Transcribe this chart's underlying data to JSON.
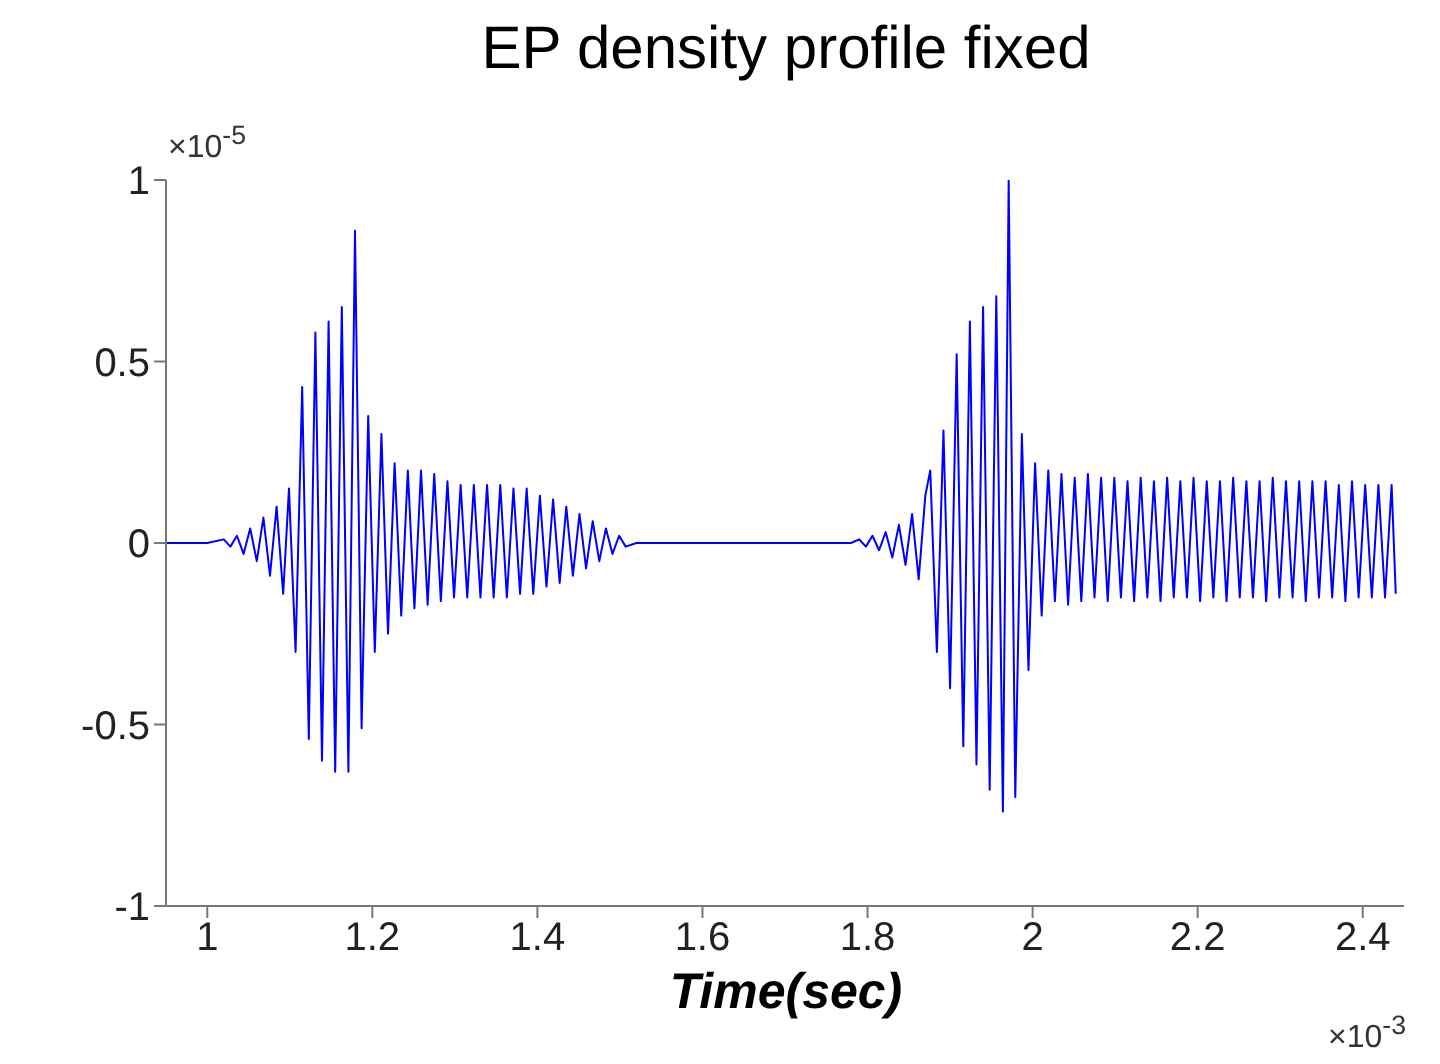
{
  "chart_data": {
    "type": "line",
    "title": "EP density profile fixed",
    "xlabel": "Time(sec)",
    "annotations": [
      "×10$^{-5}$",
      "×10$^{-3}$"
    ],
    "xlim": [
      0.95,
      2.45
    ],
    "xticks": [
      1,
      1.2,
      1.4,
      1.6,
      1.8,
      2,
      2.2,
      2.4
    ],
    "ylim": [
      -1,
      1
    ],
    "yticks": [
      -1,
      -0.5,
      0,
      0.5,
      1
    ],
    "grid": false,
    "marker": "none",
    "series": [
      {
        "color": "#0000ff",
        "x": [
          0.95,
          1.0,
          1.02,
          1.028,
          1.036,
          1.044,
          1.052,
          1.06,
          1.068,
          1.076,
          1.084,
          1.092,
          1.099,
          1.107,
          1.115,
          1.123,
          1.131,
          1.139,
          1.147,
          1.155,
          1.163,
          1.171,
          1.179,
          1.187,
          1.195,
          1.203,
          1.211,
          1.219,
          1.227,
          1.235,
          1.243,
          1.251,
          1.259,
          1.267,
          1.275,
          1.283,
          1.291,
          1.299,
          1.307,
          1.315,
          1.323,
          1.331,
          1.339,
          1.347,
          1.355,
          1.363,
          1.371,
          1.379,
          1.387,
          1.395,
          1.403,
          1.411,
          1.419,
          1.427,
          1.435,
          1.443,
          1.451,
          1.459,
          1.467,
          1.475,
          1.483,
          1.491,
          1.499,
          1.507,
          1.52,
          1.78,
          1.79,
          1.798,
          1.806,
          1.814,
          1.822,
          1.83,
          1.838,
          1.846,
          1.854,
          1.862,
          1.87,
          1.876,
          1.884,
          1.892,
          1.9,
          1.908,
          1.916,
          1.924,
          1.932,
          1.94,
          1.948,
          1.956,
          1.964,
          1.971,
          1.979,
          1.987,
          1.995,
          2.003,
          2.011,
          2.019,
          2.027,
          2.035,
          2.043,
          2.051,
          2.059,
          2.067,
          2.075,
          2.083,
          2.091,
          2.099,
          2.107,
          2.115,
          2.123,
          2.131,
          2.139,
          2.147,
          2.155,
          2.163,
          2.171,
          2.179,
          2.187,
          2.195,
          2.203,
          2.211,
          2.219,
          2.227,
          2.235,
          2.243,
          2.251,
          2.259,
          2.267,
          2.275,
          2.283,
          2.291,
          2.299,
          2.307,
          2.315,
          2.323,
          2.331,
          2.339,
          2.347,
          2.355,
          2.363,
          2.371,
          2.379,
          2.387,
          2.395,
          2.403,
          2.411,
          2.419,
          2.427,
          2.435,
          2.44
        ],
        "values": [
          0,
          0,
          0.01,
          -0.01,
          0.02,
          -0.03,
          0.04,
          -0.05,
          0.07,
          -0.09,
          0.1,
          -0.14,
          0.15,
          -0.3,
          0.43,
          -0.54,
          0.58,
          -0.6,
          0.61,
          -0.63,
          0.65,
          -0.63,
          0.86,
          -0.51,
          0.35,
          -0.3,
          0.3,
          -0.25,
          0.22,
          -0.2,
          0.2,
          -0.18,
          0.2,
          -0.17,
          0.19,
          -0.16,
          0.17,
          -0.15,
          0.16,
          -0.15,
          0.16,
          -0.15,
          0.16,
          -0.15,
          0.16,
          -0.15,
          0.15,
          -0.14,
          0.15,
          -0.14,
          0.13,
          -0.12,
          0.12,
          -0.11,
          0.1,
          -0.09,
          0.08,
          -0.07,
          0.06,
          -0.05,
          0.04,
          -0.03,
          0.02,
          -0.01,
          0,
          0,
          0.01,
          -0.01,
          0.02,
          -0.02,
          0.03,
          -0.04,
          0.05,
          -0.06,
          0.08,
          -0.1,
          0.13,
          0.2,
          -0.3,
          0.31,
          -0.4,
          0.52,
          -0.56,
          0.61,
          -0.61,
          0.65,
          -0.68,
          0.68,
          -0.74,
          1.0,
          -0.7,
          0.3,
          -0.35,
          0.22,
          -0.2,
          0.2,
          -0.16,
          0.19,
          -0.17,
          0.18,
          -0.16,
          0.19,
          -0.15,
          0.18,
          -0.16,
          0.18,
          -0.15,
          0.17,
          -0.16,
          0.18,
          -0.15,
          0.17,
          -0.16,
          0.18,
          -0.15,
          0.17,
          -0.15,
          0.18,
          -0.16,
          0.17,
          -0.15,
          0.17,
          -0.16,
          0.18,
          -0.15,
          0.17,
          -0.15,
          0.17,
          -0.16,
          0.18,
          -0.15,
          0.17,
          -0.15,
          0.17,
          -0.16,
          0.17,
          -0.15,
          0.17,
          -0.15,
          0.16,
          -0.16,
          0.17,
          -0.15,
          0.16,
          -0.15,
          0.16,
          -0.15,
          0.16,
          -0.14
        ]
      }
    ]
  }
}
